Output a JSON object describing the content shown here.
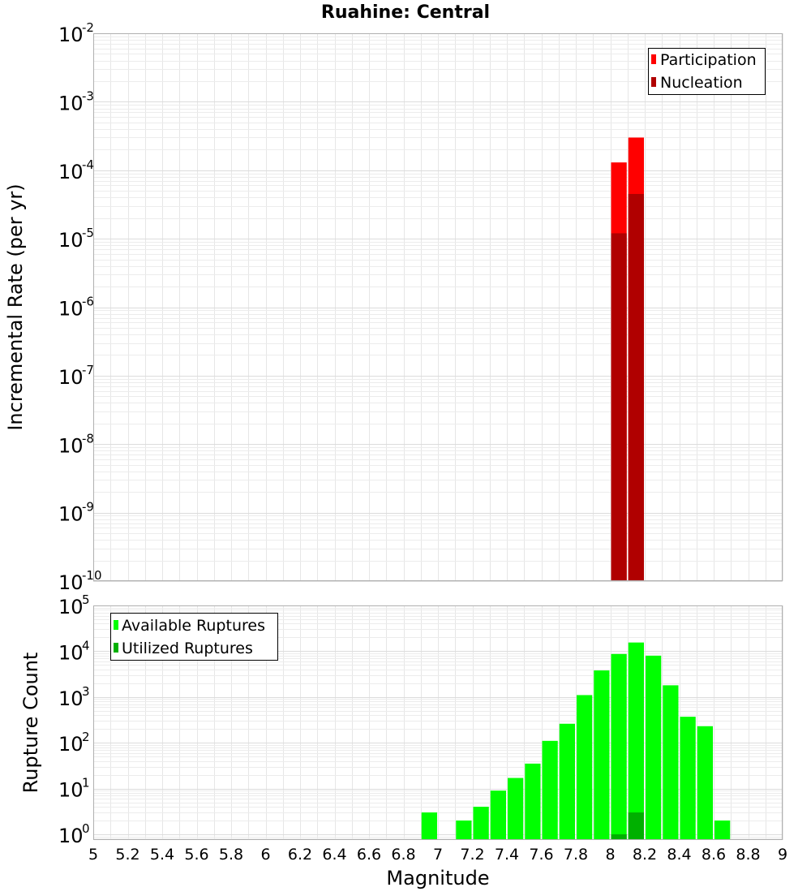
{
  "chart_data": {
    "title": "Ruahine: Central",
    "xlabel": "Magnitude",
    "x_ticks": [
      "5",
      "5.2",
      "5.4",
      "5.6",
      "5.8",
      "6",
      "6.2",
      "6.4",
      "6.6",
      "6.8",
      "7",
      "7.2",
      "7.4",
      "7.6",
      "7.8",
      "8",
      "8.2",
      "8.4",
      "8.6",
      "8.8",
      "9"
    ],
    "xlim": [
      5,
      9
    ],
    "panels": [
      {
        "type": "bar",
        "ylabel": "Incremental Rate (per yr)",
        "y_scale": "log",
        "ylim": [
          1e-10,
          0.01
        ],
        "y_ticks": [
          {
            "base": "10",
            "exp": "-2",
            "value": 0.01
          },
          {
            "base": "10",
            "exp": "-3",
            "value": 0.001
          },
          {
            "base": "10",
            "exp": "-4",
            "value": 0.0001
          },
          {
            "base": "10",
            "exp": "-5",
            "value": 1e-05
          },
          {
            "base": "10",
            "exp": "-6",
            "value": 1e-06
          },
          {
            "base": "10",
            "exp": "-7",
            "value": 1e-07
          },
          {
            "base": "10",
            "exp": "-8",
            "value": 1e-08
          },
          {
            "base": "10",
            "exp": "-9",
            "value": 1e-09
          },
          {
            "base": "10",
            "exp": "-10",
            "value": 1e-10
          }
        ],
        "grid": true,
        "legend_position": "top-right",
        "series": [
          {
            "name": "Participation",
            "color": "#ff0000",
            "points": [
              {
                "x": 8.05,
                "y": 0.00013
              },
              {
                "x": 8.15,
                "y": 0.0003
              }
            ]
          },
          {
            "name": "Nucleation",
            "color": "#b00000",
            "points": [
              {
                "x": 8.05,
                "y": 1.2e-05
              },
              {
                "x": 8.15,
                "y": 4.5e-05
              }
            ]
          }
        ]
      },
      {
        "type": "bar",
        "ylabel": "Rupture Count",
        "y_scale": "log",
        "ylim": [
          0.75,
          100000
        ],
        "y_ticks": [
          {
            "base": "10",
            "exp": "5",
            "value": 100000
          },
          {
            "base": "10",
            "exp": "4",
            "value": 10000
          },
          {
            "base": "10",
            "exp": "3",
            "value": 1000
          },
          {
            "base": "10",
            "exp": "2",
            "value": 100
          },
          {
            "base": "10",
            "exp": "1",
            "value": 10
          },
          {
            "base": "10",
            "exp": "0",
            "value": 1
          }
        ],
        "grid": true,
        "legend_position": "top-left",
        "series": [
          {
            "name": "Available Ruptures",
            "color": "#00ff00",
            "points": [
              {
                "x": 6.95,
                "y": 3
              },
              {
                "x": 7.15,
                "y": 2
              },
              {
                "x": 7.25,
                "y": 4
              },
              {
                "x": 7.35,
                "y": 9
              },
              {
                "x": 7.45,
                "y": 17
              },
              {
                "x": 7.55,
                "y": 35
              },
              {
                "x": 7.65,
                "y": 110
              },
              {
                "x": 7.75,
                "y": 260
              },
              {
                "x": 7.85,
                "y": 1100
              },
              {
                "x": 7.95,
                "y": 3800
              },
              {
                "x": 8.05,
                "y": 8700
              },
              {
                "x": 8.15,
                "y": 15500
              },
              {
                "x": 8.25,
                "y": 8000
              },
              {
                "x": 8.35,
                "y": 1800
              },
              {
                "x": 8.45,
                "y": 370
              },
              {
                "x": 8.55,
                "y": 230
              },
              {
                "x": 8.65,
                "y": 2
              }
            ]
          },
          {
            "name": "Utilized Ruptures",
            "color": "#00b000",
            "points": [
              {
                "x": 8.05,
                "y": 1
              },
              {
                "x": 8.15,
                "y": 3
              }
            ]
          }
        ]
      }
    ]
  }
}
